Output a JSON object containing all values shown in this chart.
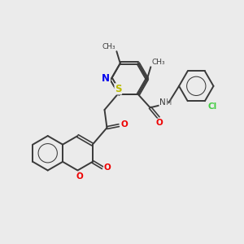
{
  "background_color": "#ebebeb",
  "bond_color": "#3a3a3a",
  "atom_colors": {
    "N": "#0000ee",
    "O": "#ee0000",
    "S": "#bbbb00",
    "Cl": "#44cc44",
    "H": "#666666",
    "C": "#3a3a3a"
  },
  "figsize": [
    3.0,
    3.0
  ],
  "dpi": 100
}
